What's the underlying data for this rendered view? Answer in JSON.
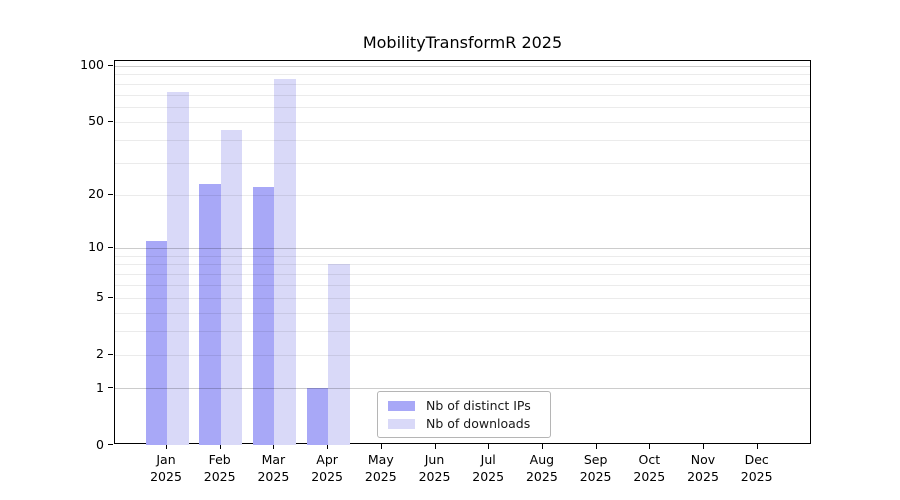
{
  "title": "MobilityTransformR 2025",
  "chart_data": {
    "type": "bar",
    "title": "MobilityTransformR 2025",
    "categories": [
      "Jan 2025",
      "Feb 2025",
      "Mar 2025",
      "Apr 2025",
      "May 2025",
      "Jun 2025",
      "Jul 2025",
      "Aug 2025",
      "Sep 2025",
      "Oct 2025",
      "Nov 2025",
      "Dec 2025"
    ],
    "series": [
      {
        "name": "Nb of distinct IPs",
        "color": "#a8a8f7",
        "values": [
          11,
          23,
          22,
          1,
          0,
          0,
          0,
          0,
          0,
          0,
          0,
          0
        ]
      },
      {
        "name": "Nb of downloads",
        "color": "#d9d9f8",
        "values": [
          72,
          45,
          85,
          8,
          0,
          0,
          0,
          0,
          0,
          0,
          0,
          0
        ]
      }
    ],
    "xlabel": "",
    "ylabel": "",
    "yscale": "log1p",
    "ylim": [
      0,
      106
    ],
    "ytick_values": [
      100,
      50,
      20,
      10,
      5,
      2,
      1,
      0
    ],
    "grid_minor_values": [
      2,
      3,
      4,
      5,
      6,
      7,
      8,
      9,
      20,
      30,
      40,
      50,
      60,
      70,
      80,
      90
    ],
    "grid_major_values": [
      1,
      10,
      100
    ],
    "grid": true,
    "legend_position": "lower-center-inside",
    "colors": {
      "grid_minor": "rgba(0,0,0,0.08)",
      "grid_major": "rgba(0,0,0,0.20)",
      "axis": "#000000",
      "background": "#ffffff"
    }
  }
}
